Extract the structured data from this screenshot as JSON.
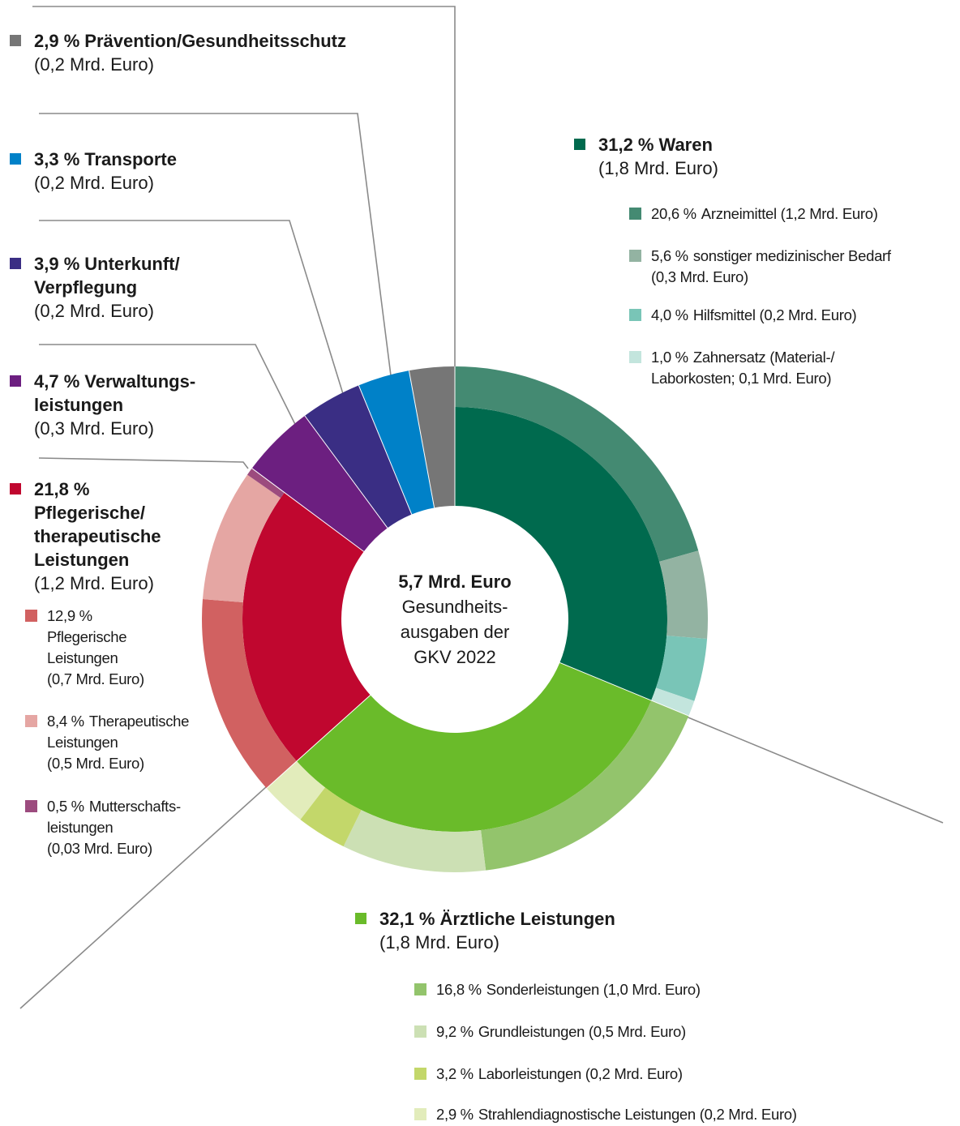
{
  "chart_data": {
    "type": "donut",
    "center_title": "5,7 Mrd. Euro",
    "center_text": "Gesundheits-\nausgaben der\nGKV 2022",
    "series": [
      {
        "name": "Waren",
        "value": 31.2,
        "value_label": "31,2 %",
        "amount": "(1,8 Mrd. Euro)",
        "color": "#006a4e",
        "children": [
          {
            "name": "Arzneimittel (1,2 Mrd. Euro)",
            "value": 20.6,
            "value_label": "20,6 %",
            "color": "#448a72"
          },
          {
            "name": "sonstiger medizinischer Bedarf\n(0,3 Mrd. Euro)",
            "value": 5.6,
            "value_label": "5,6 %",
            "color": "#93b3a2"
          },
          {
            "name": "Hilfsmittel (0,2 Mrd. Euro)",
            "value": 4.0,
            "value_label": "4,0 %",
            "color": "#79c5b7"
          },
          {
            "name": "Zahnersatz (Material-/\nLaborkosten; 0,1 Mrd. Euro)",
            "value": 1.0,
            "value_label": "1,0 %",
            "color": "#c3e5dd"
          }
        ]
      },
      {
        "name": "Ärztliche Leistungen",
        "value": 32.1,
        "value_label": "32,1 %",
        "amount": "(1,8 Mrd. Euro)",
        "color": "#6abb2a",
        "children": [
          {
            "name": "Sonderleistungen (1,0 Mrd. Euro)",
            "value": 16.8,
            "value_label": "16,8 %",
            "color": "#93c46c"
          },
          {
            "name": "Grundleistungen (0,5 Mrd. Euro)",
            "value": 9.2,
            "value_label": "9,2 %",
            "color": "#cce0b4"
          },
          {
            "name": "Laborleistungen (0,2 Mrd. Euro)",
            "value": 3.2,
            "value_label": "3,2 %",
            "color": "#c3d76a"
          },
          {
            "name": "Strahlendiagnostische Leistungen (0,2 Mrd. Euro)",
            "value": 2.9,
            "value_label": "2,9 %",
            "color": "#e2ecbb"
          }
        ]
      },
      {
        "name": "Pflegerische/\ntherapeutische\nLeistungen",
        "value": 21.8,
        "value_label": "21,8 %",
        "amount": "(1,2 Mrd. Euro)",
        "color": "#c0072f",
        "children": [
          {
            "name": "Pflegerische\nLeistungen\n(0,7 Mrd. Euro)",
            "value": 12.9,
            "value_label": "12,9 %",
            "color": "#d16161"
          },
          {
            "name": "Therapeutische\nLeistungen\n(0,5 Mrd. Euro)",
            "value": 8.4,
            "value_label": "8,4 %",
            "color": "#e5a6a3"
          },
          {
            "name": "Mutterschafts-\nleistungen\n(0,03 Mrd. Euro)",
            "value": 0.5,
            "value_label": "0,5 %",
            "color": "#9c4b7e"
          }
        ]
      },
      {
        "name": "Verwaltungs-\nleistungen",
        "value": 4.7,
        "value_label": "4,7 %",
        "amount": "(0,3 Mrd. Euro)",
        "color": "#6c1f80"
      },
      {
        "name": "Unterkunft/\nVerpflegung",
        "value": 3.9,
        "value_label": "3,9 %",
        "amount": "(0,2 Mrd. Euro)",
        "color": "#3a2e84"
      },
      {
        "name": "Transporte",
        "value": 3.3,
        "value_label": "3,3 %",
        "amount": "(0,2 Mrd. Euro)",
        "color": "#0081c8"
      },
      {
        "name": "Prävention/Gesundheitsschutz",
        "value": 2.9,
        "value_label": "2,9 %",
        "amount": "(0,2 Mrd. Euro)",
        "color": "#767676"
      }
    ]
  }
}
